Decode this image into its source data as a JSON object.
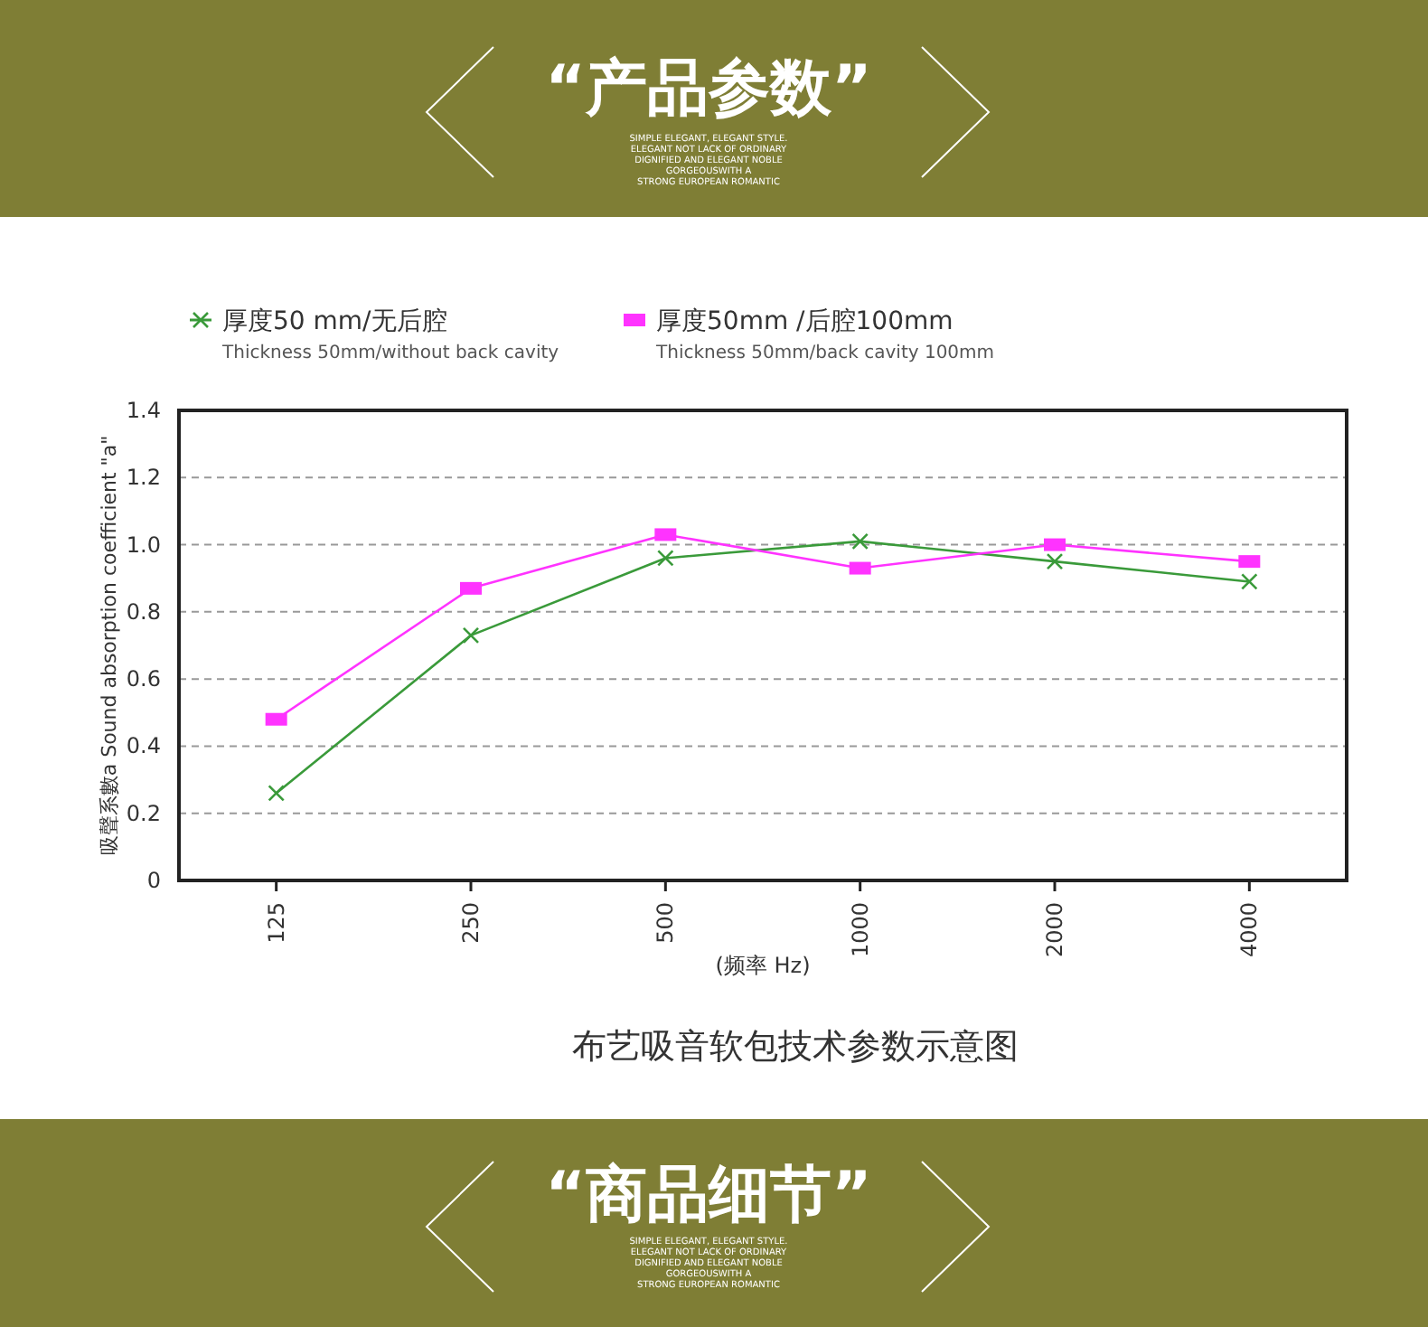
{
  "chart_data": {
    "type": "line",
    "title": "“产品参数”",
    "subtitle": "SIMPLE ELEGANT, ELEGANT STYLE.\nELEGANT NOT LACK OF ORDINARY\nDIGNIFIED AND ELEGANT NOBLE\nGORGEOUSWITH A\nSTRONG EUROPEAN ROMANTIC",
    "xlabel": "(频率 Hz)",
    "ylabel": "吸聲系數a  Sound absorption coefficient \"a\"",
    "categories": [
      "125",
      "250",
      "500",
      "1000",
      "2000",
      "4000"
    ],
    "series": [
      {
        "name": "厚度50 mm/无后腔\nThickness 50mm/without back cavity",
        "color": "#3a9a3a",
        "marker": "cross",
        "values": [
          0.26,
          0.73,
          0.96,
          1.01,
          0.95,
          0.89
        ]
      },
      {
        "name": "厚度50mm /后腔100mm\nThickness 50mm/back cavity 100mm",
        "color": "#ff33ff",
        "marker": "square",
        "values": [
          0.48,
          0.87,
          1.03,
          0.93,
          1.0,
          0.95
        ]
      }
    ],
    "ylim": [
      0,
      1.4
    ],
    "yticks": [
      0,
      0.2,
      0.4,
      0.6,
      0.8,
      {
        "value": 1.0,
        "label": "1.0"
      },
      1.2,
      1.4
    ],
    "grid": "y",
    "legend": "top",
    "line_style": "solid",
    "annotations": [
      "布艺吸音软包技术参数示意图",
      "“商品细节”",
      "SIMPLE ELEGANT, ELEGANT STYLE.\nELEGANT NOT LACK OF ORDINARY\nDIGNIFIED AND ELEGANT NOBLE\nGORGEOUSWITH A\nSTRONG EUROPEAN ROMANTIC"
    ]
  }
}
